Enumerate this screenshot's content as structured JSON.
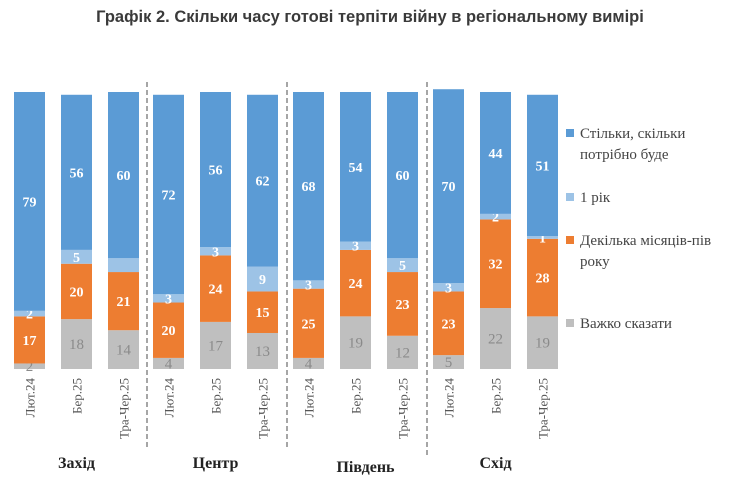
{
  "chart_data": {
    "type": "bar",
    "stacked": true,
    "title": "Графік 2. Скільки часу готові терпіти війну в регіональному вимірі",
    "groups": [
      "Захід",
      "Центр",
      "Південь",
      "Схід"
    ],
    "categories": [
      "Лют.24",
      "Бер.25",
      "Тра-Чер.25"
    ],
    "ylim": [
      0,
      100
    ],
    "legend_position": "right",
    "series": [
      {
        "name": "Важко сказати",
        "color": "#BFBFBF",
        "values": [
          [
            2,
            18,
            14
          ],
          [
            4,
            17,
            13
          ],
          [
            4,
            19,
            12
          ],
          [
            5,
            22,
            19
          ]
        ]
      },
      {
        "name": "Декілька місяців-пів року",
        "color": "#ED7D31",
        "values": [
          [
            17,
            20,
            21
          ],
          [
            20,
            24,
            15
          ],
          [
            25,
            24,
            23
          ],
          [
            23,
            32,
            28
          ]
        ]
      },
      {
        "name": "1 рік",
        "color": "#9DC3E6",
        "values": [
          [
            2,
            5,
            5
          ],
          [
            3,
            3,
            9
          ],
          [
            3,
            3,
            5
          ],
          [
            3,
            2,
            1
          ]
        ],
        "unlabeled": [
          [
            0,
            2
          ]
        ]
      },
      {
        "name": "Стільки, скільки потрібно буде",
        "color": "#5B9BD5",
        "values": [
          [
            79,
            56,
            60
          ],
          [
            72,
            56,
            62
          ],
          [
            68,
            54,
            60
          ],
          [
            70,
            44,
            51
          ]
        ]
      }
    ],
    "legend_order": [
      3,
      2,
      1,
      0
    ]
  }
}
